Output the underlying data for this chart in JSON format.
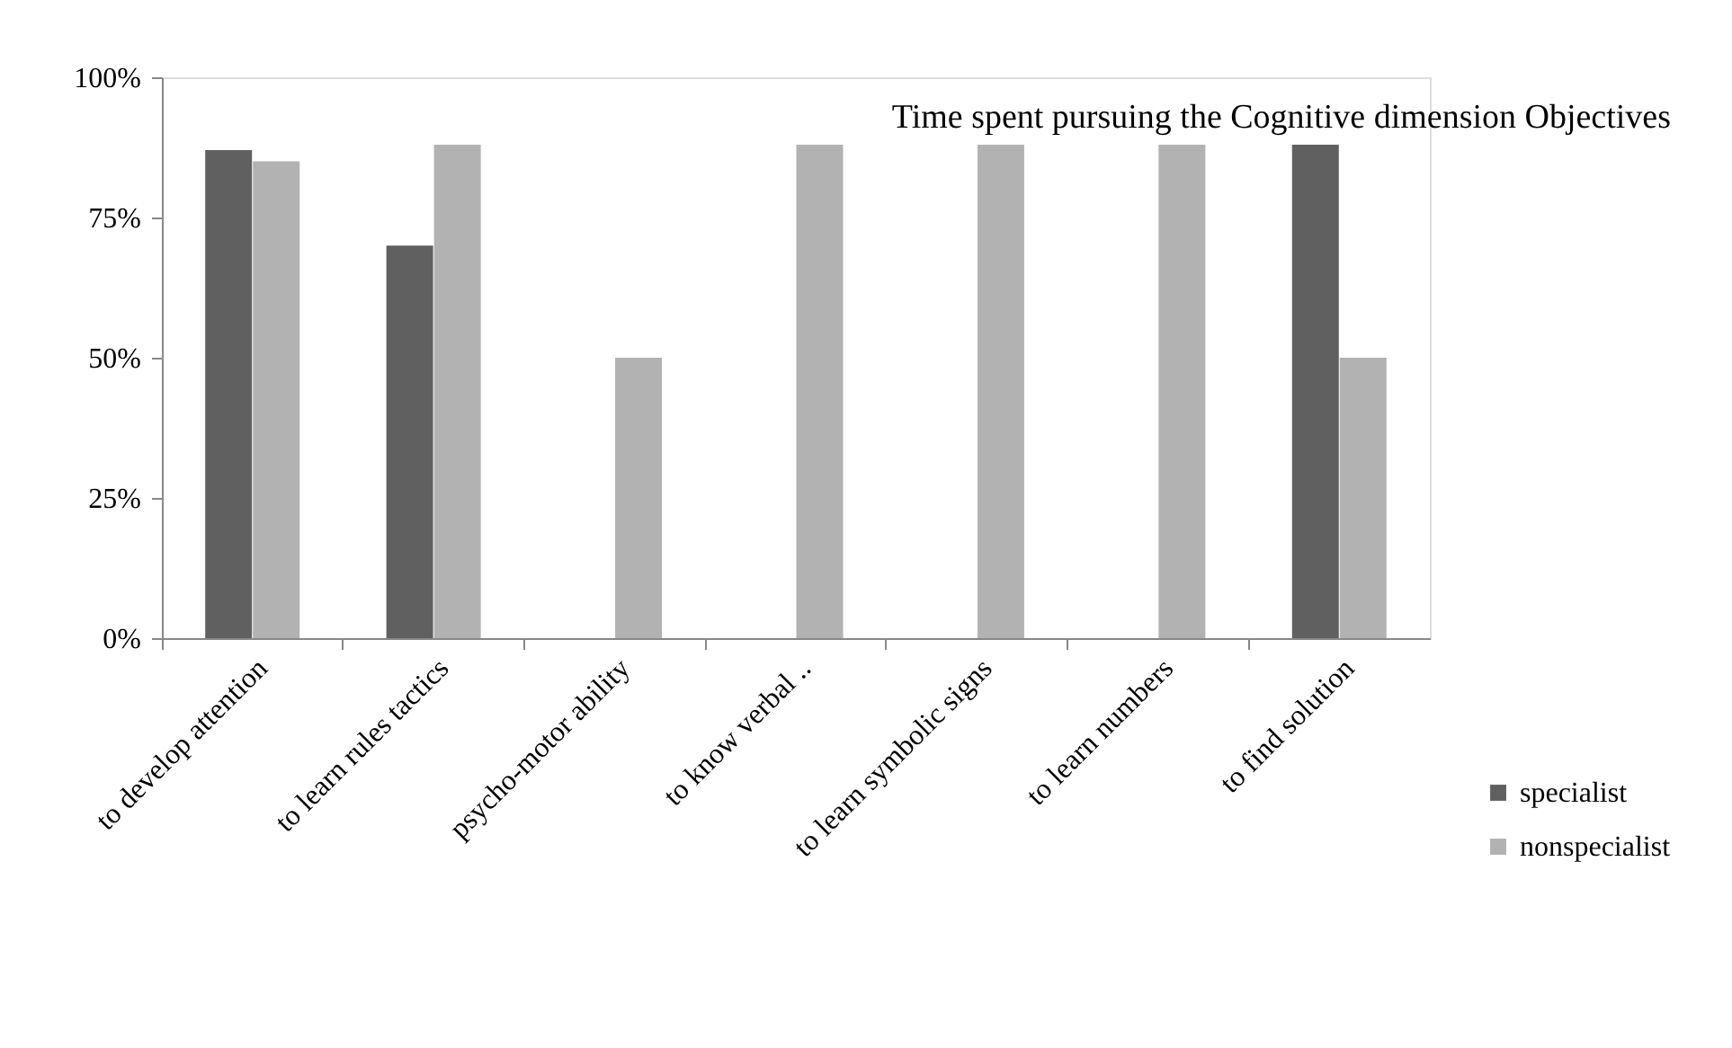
{
  "chart_data": {
    "type": "bar",
    "title": "Time spent pursuing the Cognitive dimension Objectives",
    "categories": [
      "to develop attention",
      "to  learn rules tactics",
      "psycho-motor ability",
      "to know verbal ..",
      "to learn symbolic signs",
      "to learn numbers",
      "to find solution"
    ],
    "series": [
      {
        "name": "specialist",
        "color": "#606060",
        "values": [
          87,
          70,
          0,
          0,
          0,
          0,
          88
        ]
      },
      {
        "name": "nonspecialist",
        "color": "#b2b2b2",
        "values": [
          85,
          88,
          50,
          88,
          88,
          88,
          50
        ]
      }
    ],
    "ylim": [
      0,
      100
    ],
    "yticks": [
      {
        "value": 0,
        "label": "0%"
      },
      {
        "value": 25,
        "label": "25%"
      },
      {
        "value": 50,
        "label": "50%"
      },
      {
        "value": 75,
        "label": "75%"
      },
      {
        "value": 100,
        "label": "100%"
      }
    ],
    "grid": false,
    "legend": "bottom right"
  }
}
